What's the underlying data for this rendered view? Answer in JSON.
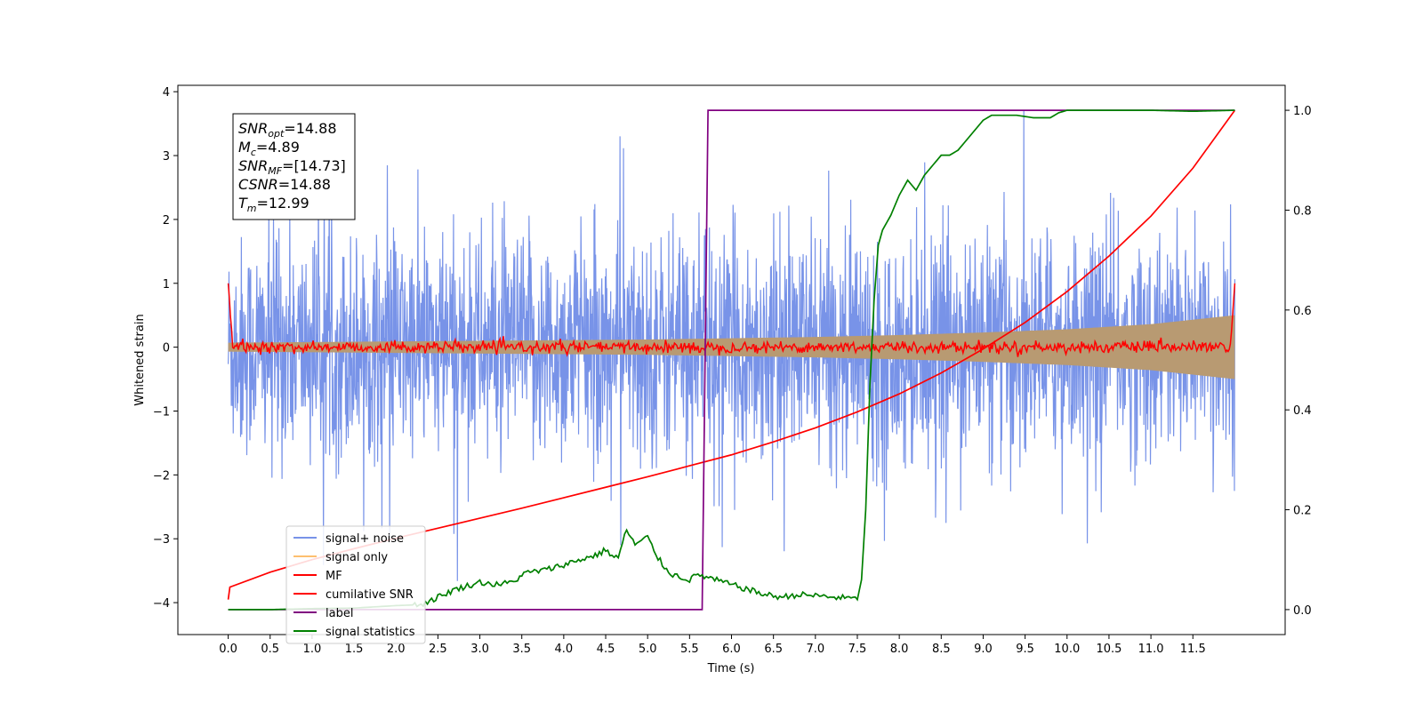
{
  "chart_data": {
    "type": "line",
    "title": "",
    "xlabel": "Time (s)",
    "ylabel": "Whitened strain",
    "y2label": "",
    "xlim": [
      -0.6,
      12.6
    ],
    "ylim": [
      -4.5,
      4.1
    ],
    "y2lim": [
      -0.05,
      1.05
    ],
    "xticks": [
      0.0,
      0.5,
      1.0,
      1.5,
      2.0,
      2.5,
      3.0,
      3.5,
      4.0,
      4.5,
      5.0,
      5.5,
      6.0,
      6.5,
      7.0,
      7.5,
      8.0,
      8.5,
      9.0,
      9.5,
      10.0,
      10.5,
      11.0,
      11.5
    ],
    "xtick_labels": [
      "0.0",
      "0.5",
      "1.0",
      "1.5",
      "2.0",
      "2.5",
      "3.0",
      "3.5",
      "4.0",
      "4.5",
      "5.0",
      "5.5",
      "6.0",
      "6.5",
      "7.0",
      "7.5",
      "8.0",
      "8.5",
      "9.0",
      "9.5",
      "10.0",
      "10.5",
      "11.0",
      "11.5"
    ],
    "yticks": [
      4,
      3,
      2,
      1,
      0,
      -1,
      -2,
      -3,
      -4
    ],
    "ytick_labels": [
      "4",
      "3",
      "2",
      "1",
      "0",
      "−1",
      "−2",
      "−3",
      "−4"
    ],
    "y2ticks": [
      1.0,
      0.8,
      0.6,
      0.4,
      0.2,
      0.0
    ],
    "y2tick_labels": [
      "1.0",
      "0.8",
      "0.6",
      "0.4",
      "0.2",
      "0.0"
    ],
    "grid": false,
    "legend_position": "lower-left",
    "series": [
      {
        "name": "signal+ noise",
        "color": "#7893e8",
        "axis": "left",
        "x_range": [
          0.0,
          12.0
        ],
        "description_envelope": {
          "typical_abs": 1.6,
          "peak_max": 3.7,
          "peak_min": -4.15
        }
      },
      {
        "name": "signal only",
        "color": "#fdbf6f",
        "axis": "left",
        "x": [
          0,
          1,
          2,
          3,
          4,
          5,
          6,
          7,
          8,
          9,
          10,
          11,
          12
        ],
        "amplitude": [
          0.07,
          0.08,
          0.09,
          0.1,
          0.11,
          0.12,
          0.14,
          0.16,
          0.19,
          0.23,
          0.28,
          0.36,
          0.5
        ]
      },
      {
        "name": "MF",
        "color": "#ff0000",
        "axis": "left",
        "x_range": [
          0.0,
          12.0
        ],
        "edge_values": [
          1.0,
          1.0
        ],
        "typical_abs": 0.1
      },
      {
        "name": "cumilative SNR",
        "color": "#ff0000",
        "axis": "right",
        "x": [
          0.0,
          0.02,
          0.5,
          1.0,
          1.5,
          2.0,
          2.5,
          3.0,
          3.5,
          4.0,
          4.5,
          5.0,
          5.5,
          6.0,
          6.5,
          7.0,
          7.5,
          8.0,
          8.5,
          9.0,
          9.5,
          10.0,
          10.5,
          11.0,
          11.5,
          12.0
        ],
        "y": [
          0.02,
          0.045,
          0.075,
          0.1,
          0.122,
          0.143,
          0.163,
          0.183,
          0.203,
          0.224,
          0.245,
          0.266,
          0.288,
          0.31,
          0.336,
          0.364,
          0.396,
          0.432,
          0.474,
          0.522,
          0.575,
          0.637,
          0.708,
          0.788,
          0.884,
          1.0
        ]
      },
      {
        "name": "label",
        "color": "#800080",
        "axis": "right",
        "x": [
          0.0,
          5.65,
          5.72,
          12.0
        ],
        "y": [
          0.0,
          0.0,
          1.0,
          1.0
        ]
      },
      {
        "name": "signal statistics",
        "color": "#008000",
        "axis": "right",
        "x": [
          0.0,
          0.5,
          1.0,
          1.5,
          2.0,
          2.3,
          2.5,
          2.7,
          2.9,
          3.0,
          3.2,
          3.4,
          3.5,
          3.6,
          3.8,
          4.0,
          4.2,
          4.4,
          4.5,
          4.6,
          4.65,
          4.75,
          4.85,
          5.0,
          5.1,
          5.2,
          5.3,
          5.5,
          5.6,
          5.8,
          6.0,
          6.2,
          6.4,
          6.6,
          6.8,
          7.0,
          7.2,
          7.4,
          7.5,
          7.55,
          7.6,
          7.65,
          7.7,
          7.75,
          7.8,
          7.9,
          8.0,
          8.1,
          8.2,
          8.3,
          8.4,
          8.5,
          8.6,
          8.7,
          8.8,
          8.9,
          9.0,
          9.1,
          9.2,
          9.4,
          9.6,
          9.8,
          9.9,
          10.0,
          10.5,
          11.0,
          11.5,
          12.0
        ],
        "y": [
          0.0,
          0.0,
          0.002,
          0.003,
          0.008,
          0.01,
          0.025,
          0.04,
          0.05,
          0.055,
          0.05,
          0.055,
          0.07,
          0.075,
          0.08,
          0.09,
          0.1,
          0.11,
          0.12,
          0.105,
          0.105,
          0.16,
          0.13,
          0.145,
          0.11,
          0.085,
          0.07,
          0.06,
          0.07,
          0.06,
          0.05,
          0.04,
          0.03,
          0.025,
          0.03,
          0.028,
          0.025,
          0.023,
          0.02,
          0.06,
          0.2,
          0.45,
          0.62,
          0.73,
          0.76,
          0.79,
          0.83,
          0.86,
          0.84,
          0.87,
          0.89,
          0.91,
          0.91,
          0.92,
          0.94,
          0.96,
          0.98,
          0.99,
          0.99,
          0.99,
          0.985,
          0.985,
          0.995,
          1.0,
          1.0,
          1.0,
          0.998,
          1.0
        ]
      }
    ],
    "info_box": [
      {
        "main": "SNR",
        "sub": "opt",
        "value": "=14.88"
      },
      {
        "main": "M",
        "sub": "c",
        "value": "=4.89"
      },
      {
        "main": "SNR",
        "sub": "MF",
        "value": "=[14.73]"
      },
      {
        "main": "CSNR",
        "sub": "",
        "value": "=14.88"
      },
      {
        "main": "T",
        "sub": "m",
        "value": "=12.99"
      }
    ]
  }
}
